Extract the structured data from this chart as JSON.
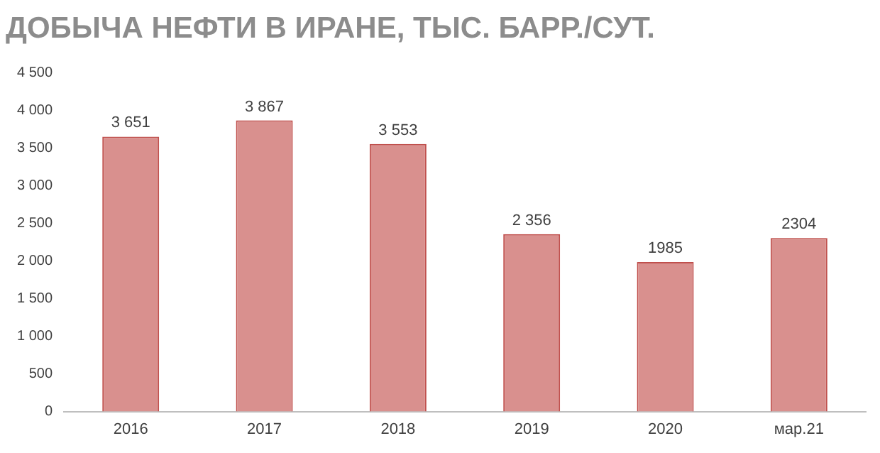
{
  "chart_data": {
    "type": "bar",
    "title": "ДОБЫЧА НЕФТИ В ИРАНЕ, ТЫС. БАРР./СУТ.",
    "categories": [
      "2016",
      "2017",
      "2018",
      "2019",
      "2020",
      "мар.21"
    ],
    "values": [
      3651,
      3867,
      3553,
      2356,
      1985,
      2304
    ],
    "value_labels": [
      "3 651",
      "3 867",
      "3 553",
      "2 356",
      "1985",
      "2304"
    ],
    "color": "#d9908e",
    "ylim": [
      0,
      4500
    ],
    "yticks": [
      {
        "value": 0,
        "label": "0"
      },
      {
        "value": 500,
        "label": "500"
      },
      {
        "value": 1000,
        "label": "1 000"
      },
      {
        "value": 1500,
        "label": "1 500"
      },
      {
        "value": 2000,
        "label": "2 000"
      },
      {
        "value": 2500,
        "label": "2 500"
      },
      {
        "value": 3000,
        "label": "3 000"
      },
      {
        "value": 3500,
        "label": "3 500"
      },
      {
        "value": 4000,
        "label": "4 000"
      },
      {
        "value": 4500,
        "label": "4 500"
      }
    ],
    "grid": false,
    "legend": false
  }
}
